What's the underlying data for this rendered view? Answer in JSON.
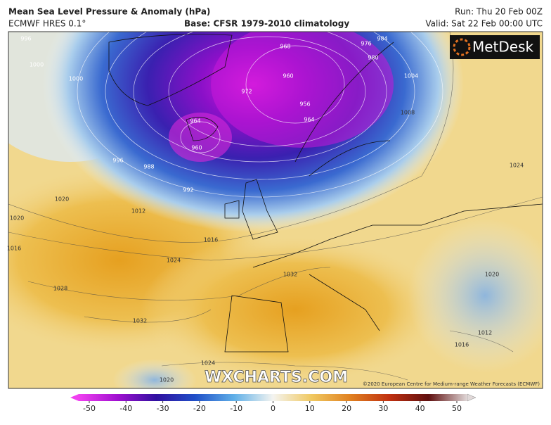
{
  "header": {
    "title": "Mean Sea Level Pressure & Anomaly (hPa)",
    "model": "ECMWF HRES 0.1°",
    "base": "Base: CFSR 1979-2010 climatology",
    "run": "Run: Thu 20 Feb 00Z",
    "valid": "Valid: Sat 22 Feb 00:00 UTC"
  },
  "logo": "MetDesk",
  "watermark": "WXCHARTS.COM",
  "copyright": "©2020 European Centre for Medium-range Weather Forecasts (ECMWF)",
  "isobar_labels": [
    996,
    1000,
    1000,
    968,
    976,
    984,
    980,
    1004,
    1008,
    960,
    956,
    964,
    972,
    960,
    964,
    996,
    988,
    992,
    1012,
    1016,
    1020,
    1020,
    1016,
    1024,
    1028,
    1032,
    1032,
    1024,
    1020,
    1024,
    1020,
    1012,
    1016
  ],
  "colorbar": {
    "lim": [
      -50,
      50
    ],
    "ticks": [
      -50,
      -40,
      -30,
      -20,
      -10,
      0,
      10,
      20,
      30,
      40,
      50
    ]
  }
}
